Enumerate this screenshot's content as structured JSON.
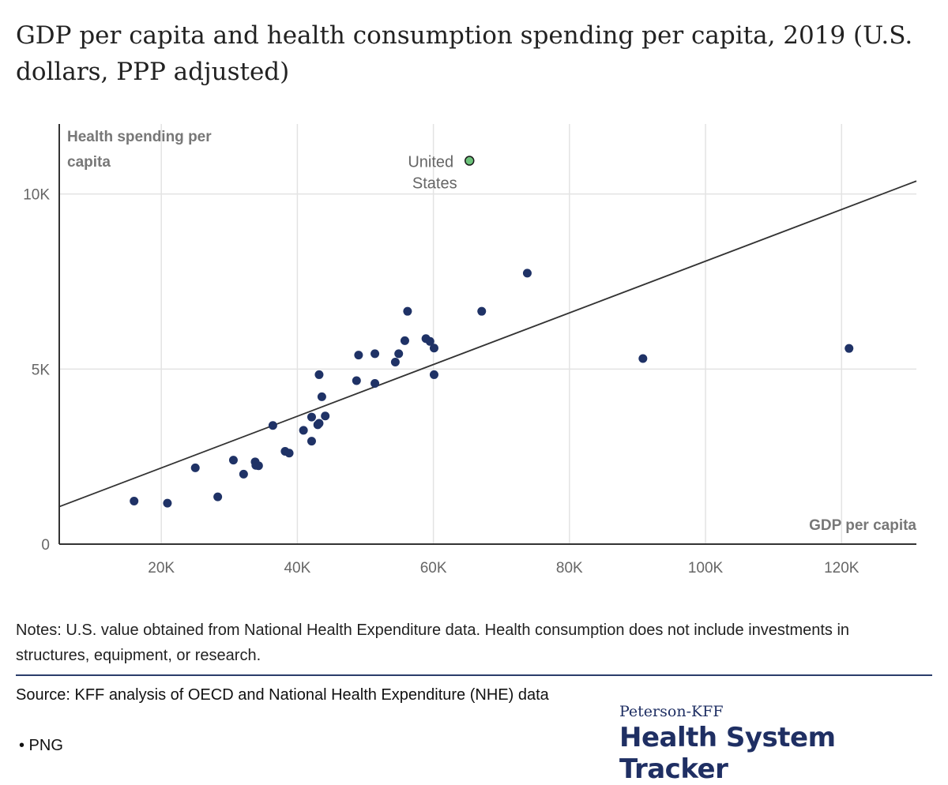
{
  "title": "GDP per capita and health consumption spending per capita, 2019 (U.S. dollars, PPP adjusted)",
  "notes": "Notes: U.S. value obtained from National Health Expenditure data. Health consumption does not include investments in structures, equipment, or research.",
  "source": "Source: KFF analysis of OECD and National Health Expenditure (NHE) data",
  "png_link": "• PNG",
  "brand": {
    "top": "Peterson-KFF",
    "main": "Health System Tracker"
  },
  "colors": {
    "point": "#1f3266",
    "highlight": "#6cc27a",
    "line": "#333333",
    "grid": "#e3e3e3",
    "axis_label": "#777777"
  },
  "chart_data": {
    "type": "scatter",
    "xlabel": "GDP per capita",
    "ylabel": "Health spending per capita",
    "xlim": [
      5000,
      131000
    ],
    "ylim": [
      0,
      12000
    ],
    "x_ticks": [
      {
        "value": 20000,
        "label": "20K"
      },
      {
        "value": 40000,
        "label": "40K"
      },
      {
        "value": 60000,
        "label": "60K"
      },
      {
        "value": 80000,
        "label": "80K"
      },
      {
        "value": 100000,
        "label": "100K"
      },
      {
        "value": 120000,
        "label": "120K"
      }
    ],
    "y_ticks": [
      {
        "value": 0,
        "label": "0"
      },
      {
        "value": 5000,
        "label": "5K"
      },
      {
        "value": 10000,
        "label": "10K"
      }
    ],
    "trendline": {
      "x1": 5000,
      "y1": 1070,
      "x2": 131000,
      "y2": 10370
    },
    "highlight": {
      "label_line1": "United",
      "label_line2": "States",
      "x": 65300,
      "y": 10950
    },
    "points": [
      {
        "x": 16000,
        "y": 1230
      },
      {
        "x": 20900,
        "y": 1170
      },
      {
        "x": 25000,
        "y": 2180
      },
      {
        "x": 28300,
        "y": 1350
      },
      {
        "x": 30600,
        "y": 2400
      },
      {
        "x": 32100,
        "y": 2000
      },
      {
        "x": 33800,
        "y": 2350
      },
      {
        "x": 33900,
        "y": 2250
      },
      {
        "x": 34300,
        "y": 2240
      },
      {
        "x": 36400,
        "y": 3390
      },
      {
        "x": 38200,
        "y": 2650
      },
      {
        "x": 38800,
        "y": 2600
      },
      {
        "x": 40900,
        "y": 3250
      },
      {
        "x": 42100,
        "y": 2940
      },
      {
        "x": 42100,
        "y": 3630
      },
      {
        "x": 43000,
        "y": 3410
      },
      {
        "x": 43200,
        "y": 3450
      },
      {
        "x": 43200,
        "y": 4840
      },
      {
        "x": 43600,
        "y": 4210
      },
      {
        "x": 44100,
        "y": 3660
      },
      {
        "x": 48700,
        "y": 4670
      },
      {
        "x": 49000,
        "y": 5400
      },
      {
        "x": 51400,
        "y": 4590
      },
      {
        "x": 51400,
        "y": 5440
      },
      {
        "x": 54400,
        "y": 5200
      },
      {
        "x": 54900,
        "y": 5440
      },
      {
        "x": 55800,
        "y": 5810
      },
      {
        "x": 56200,
        "y": 6650
      },
      {
        "x": 58900,
        "y": 5870
      },
      {
        "x": 59500,
        "y": 5790
      },
      {
        "x": 60100,
        "y": 5600
      },
      {
        "x": 60100,
        "y": 4840
      },
      {
        "x": 67100,
        "y": 6650
      },
      {
        "x": 73800,
        "y": 7740
      },
      {
        "x": 90800,
        "y": 5300
      },
      {
        "x": 121100,
        "y": 5590
      }
    ]
  }
}
